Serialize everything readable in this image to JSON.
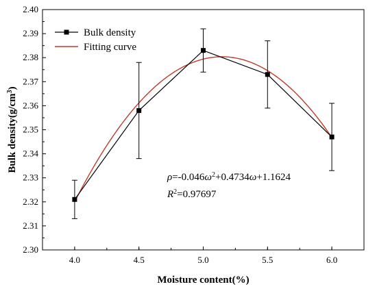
{
  "chart_data": {
    "type": "line",
    "xlabel": "Moisture content(%)",
    "ylabel": {
      "base": "Bulk density(g/cm",
      "sup": "3",
      "tail": ")"
    },
    "xlim": [
      3.75,
      6.25
    ],
    "ylim": [
      2.3,
      2.4
    ],
    "x_ticks": [
      "4.0",
      "4.5",
      "5.0",
      "5.5",
      "6.0"
    ],
    "y_ticks": [
      "2.30",
      "2.31",
      "2.32",
      "2.33",
      "2.34",
      "2.35",
      "2.36",
      "2.37",
      "2.38",
      "2.39",
      "2.40"
    ],
    "grid": false,
    "legend_position": "top-left",
    "series": [
      {
        "name": "Bulk density",
        "type": "line-with-markers",
        "color": "#000000",
        "marker": "square",
        "x": [
          4.0,
          4.5,
          5.0,
          5.5,
          6.0
        ],
        "y": [
          2.321,
          2.358,
          2.383,
          2.373,
          2.347
        ],
        "error_low": [
          2.313,
          2.338,
          2.374,
          2.359,
          2.333
        ],
        "error_high": [
          2.329,
          2.378,
          2.392,
          2.387,
          2.361
        ]
      },
      {
        "name": "Fitting curve",
        "type": "smooth-line",
        "color": "#c0392b",
        "fit_coefficients": {
          "a": -0.046,
          "b": 0.4734,
          "c": 1.1624
        }
      }
    ],
    "annotation": {
      "line1": {
        "sym": "ρ",
        "p1": "=-0.046",
        "sym2": "ω",
        "sup": "2",
        "p2": "+0.4734",
        "sym3": "ω",
        "p3": "+1.1624"
      },
      "line2": {
        "sym": "R",
        "sup": "2",
        "p1": "=0.97697"
      }
    }
  }
}
